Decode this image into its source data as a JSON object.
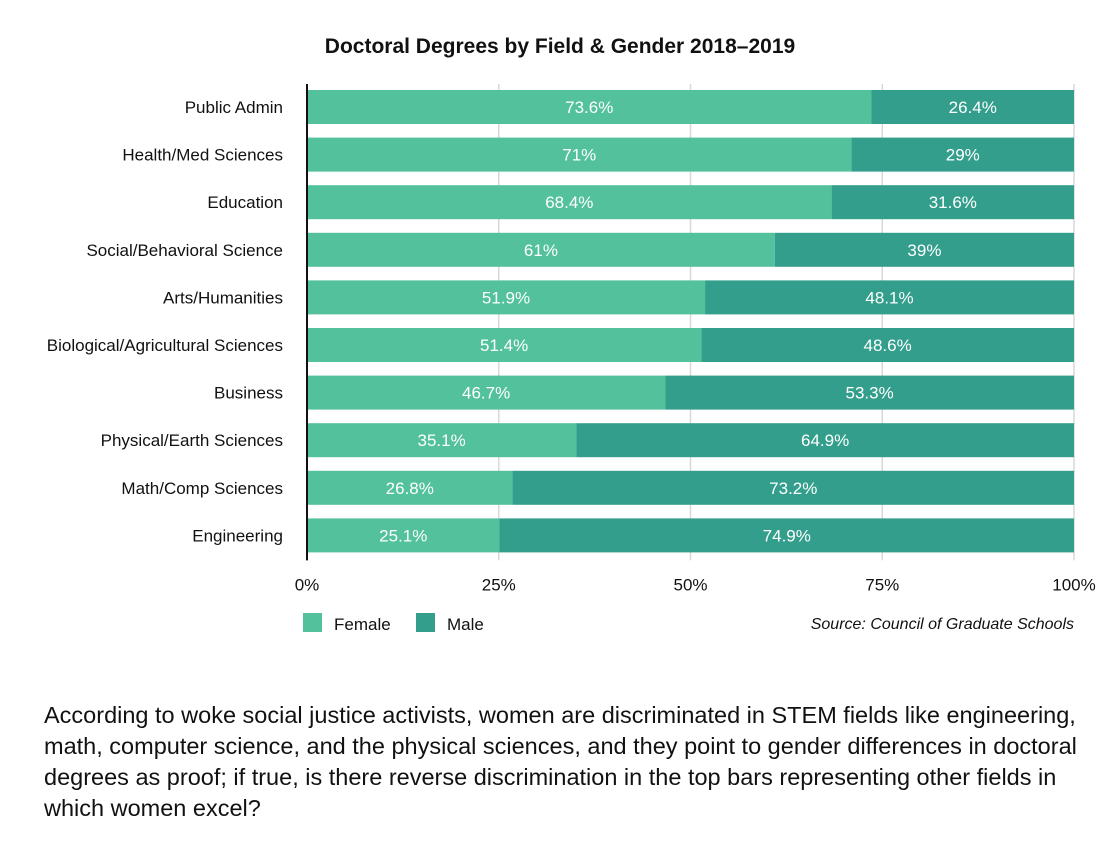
{
  "chart_data": {
    "type": "bar",
    "orientation": "horizontal",
    "stacked": true,
    "title": "Doctoral Degrees by Field & Gender 2018–2019",
    "categories": [
      "Public Admin",
      "Health/Med Sciences",
      "Education",
      "Social/Behavioral Science",
      "Arts/Humanities",
      "Biological/Agricultural Sciences",
      "Business",
      "Physical/Earth Sciences",
      "Math/Comp Sciences",
      "Engineering"
    ],
    "series": [
      {
        "name": "Female",
        "color": "#52c19c",
        "values": [
          73.6,
          71,
          68.4,
          61,
          51.9,
          51.4,
          46.7,
          35.1,
          26.8,
          25.1
        ],
        "labels": [
          "73.6%",
          "71%",
          "68.4%",
          "61%",
          "51.9%",
          "51.4%",
          "46.7%",
          "35.1%",
          "26.8%",
          "25.1%"
        ]
      },
      {
        "name": "Male",
        "color": "#339e8c",
        "values": [
          26.4,
          29,
          31.6,
          39,
          48.1,
          48.6,
          53.3,
          64.9,
          73.2,
          74.9
        ],
        "labels": [
          "26.4%",
          "29%",
          "31.6%",
          "39%",
          "48.1%",
          "48.6%",
          "53.3%",
          "64.9%",
          "73.2%",
          "74.9%"
        ]
      }
    ],
    "xlim": [
      0,
      100
    ],
    "xticks": [
      0,
      25,
      50,
      75,
      100
    ],
    "xtick_labels": [
      "0%",
      "25%",
      "50%",
      "75%",
      "100%"
    ],
    "grid": true,
    "legend": "bottom-left",
    "source": "Source:  Council of Graduate Schools"
  },
  "caption": "According to woke social justice activists, women are discriminated in STEM fields like engineering, math, computer science, and the physical sciences, and they point to gender differences in doctoral degrees as proof; if true, is there reverse discrimination in the top bars representing other fields in which women excel?"
}
